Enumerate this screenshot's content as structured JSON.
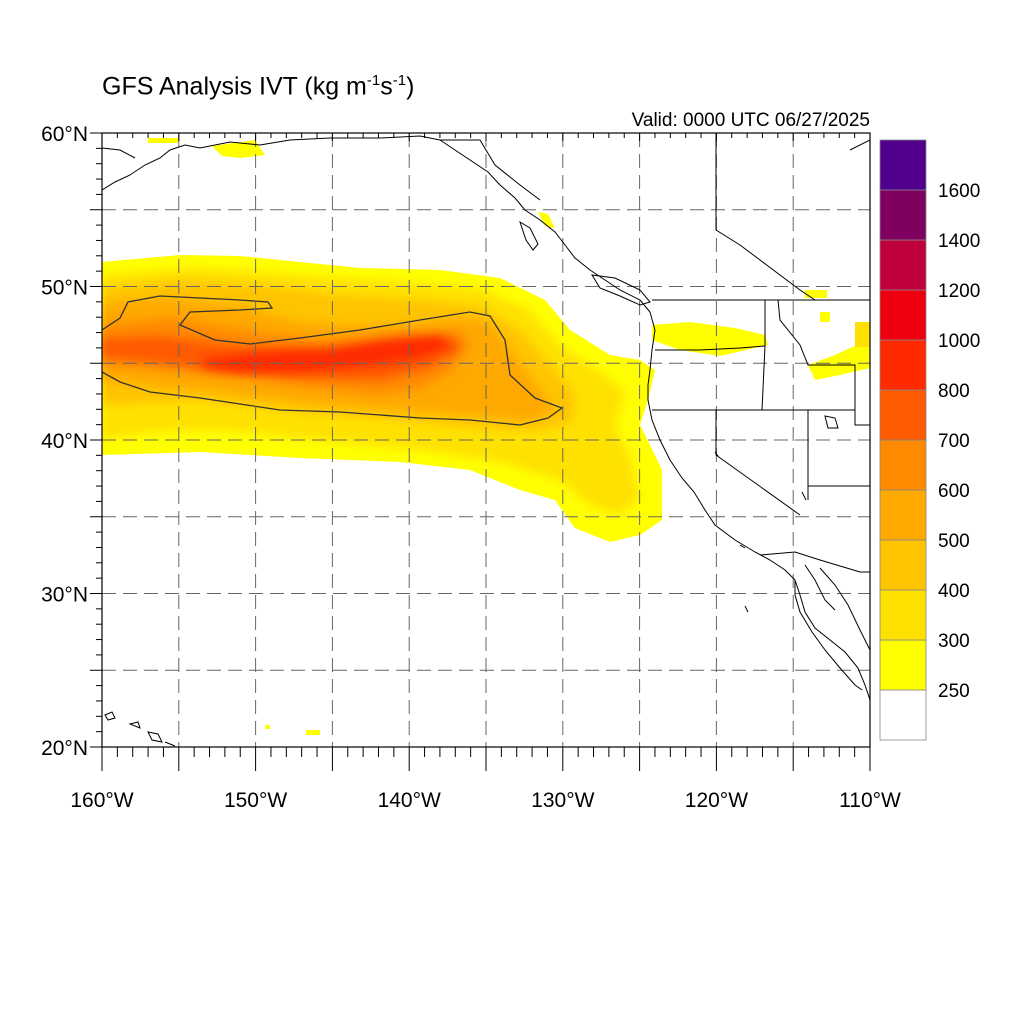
{
  "title": {
    "prefix": "GFS Analysis IVT (kg m",
    "exp1": "-1",
    "mid": "s",
    "exp2": "-1",
    "suffix": ")"
  },
  "valid": "Valid: 0000 UTC 06/27/2025",
  "map": {
    "lon_range": [
      -160,
      -110
    ],
    "lat_range": [
      20,
      60
    ],
    "lon_labels": [
      "160°W",
      "150°W",
      "140°W",
      "130°W",
      "120°W",
      "110°W"
    ],
    "lat_labels": [
      "20°N",
      "30°N",
      "40°N",
      "50°N",
      "60°N"
    ],
    "gridline_style": "dashed"
  },
  "colorbar": {
    "levels": [
      "250",
      "300",
      "400",
      "500",
      "600",
      "700",
      "800",
      "1000",
      "1200",
      "1400",
      "1600"
    ],
    "colors": [
      "#ffffff",
      "#ffff00",
      "#ffe100",
      "#ffc400",
      "#ffa800",
      "#ff8a00",
      "#ff5a00",
      "#ff2a00",
      "#ee0010",
      "#c0003c",
      "#800060",
      "#50008c"
    ]
  },
  "contour_level": "500"
}
